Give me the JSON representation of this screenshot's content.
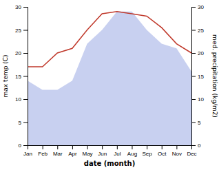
{
  "chart_data": {
    "type": "line",
    "xlabel": "date (month)",
    "ylabel": "max temp (C)",
    "y2label": "med. precipitation (kg/m2)",
    "categories": [
      "Jan",
      "Feb",
      "Mar",
      "Apr",
      "May",
      "Jun",
      "Jul",
      "Aug",
      "Sep",
      "Oct",
      "Nov",
      "Dec"
    ],
    "series": [
      {
        "type": "area",
        "color": "#c8d0f0",
        "values": [
          14,
          12,
          12,
          14,
          22,
          25,
          29,
          29,
          25,
          22,
          21,
          16
        ]
      },
      {
        "type": "line",
        "color": "#c0392b",
        "values": [
          17,
          17,
          20,
          21,
          25,
          28.5,
          29,
          28.5,
          28,
          25.5,
          22,
          20
        ]
      }
    ],
    "ylim": [
      0,
      30
    ],
    "yticks": [
      0,
      5,
      10,
      15,
      20,
      25,
      30
    ],
    "y2lim": [
      0,
      30
    ],
    "y2ticks": [
      0,
      5,
      10,
      15,
      20,
      25,
      30
    ],
    "grid": false
  }
}
